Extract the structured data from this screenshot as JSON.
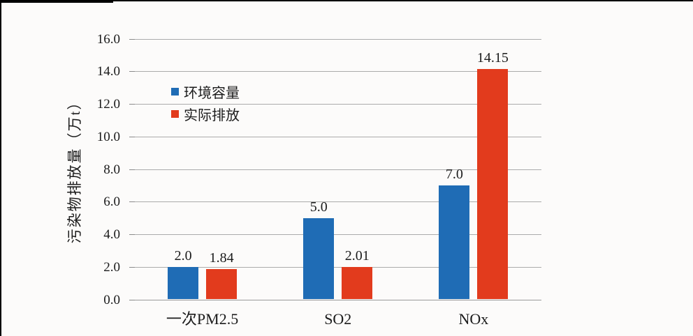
{
  "frame": {
    "background": "#fcfbfa",
    "border_color": "#000000"
  },
  "chart_data": {
    "type": "bar",
    "title": "",
    "xlabel": "",
    "ylabel": "污染物排放量（万t）",
    "categories": [
      "一次PM2.5",
      "SO2",
      "NOx"
    ],
    "series": [
      {
        "name": "环境容量",
        "color": "#1f6cb5",
        "values": [
          2.0,
          5.0,
          7.0
        ],
        "value_labels": [
          "2.0",
          "5.0",
          "7.0"
        ]
      },
      {
        "name": "实际排放",
        "color": "#e23b1d",
        "values": [
          1.84,
          2.01,
          14.15
        ],
        "value_labels": [
          "1.84",
          "2.01",
          "14.15"
        ]
      }
    ],
    "ylim": [
      0,
      16
    ],
    "ytick_step": 2,
    "ytick_labels": [
      "0.0",
      "2.0",
      "4.0",
      "6.0",
      "8.0",
      "10.0",
      "12.0",
      "14.0",
      "16.0"
    ],
    "grid": true,
    "grid_color": "#ababab",
    "baseline_color": "#9a9a9a",
    "tick_color": "#8a8a8a",
    "text_color": "#1b1b1b",
    "legend_position": "upper-left-inside"
  }
}
